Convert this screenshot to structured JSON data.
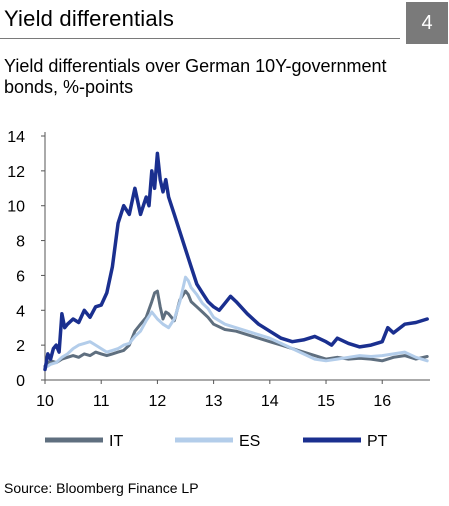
{
  "header": {
    "title": "Yield differentials",
    "badge": "4"
  },
  "subtitle": "Yield differentials over German 10Y-government bonds, %-points",
  "source": "Source: Bloomberg Finance LP",
  "colors": {
    "IT": "#5f6f7f",
    "ES": "#b3cdea",
    "PT": "#1a2f8f",
    "rule": "#7a7a7a"
  },
  "chart_data": {
    "type": "line",
    "title": "",
    "xlabel": "",
    "ylabel": "",
    "xlim": [
      10,
      16.85
    ],
    "ylim": [
      0,
      14
    ],
    "x_ticks": [
      "10",
      "11",
      "12",
      "13",
      "14",
      "15",
      "16"
    ],
    "y_ticks": [
      "0",
      "2",
      "4",
      "6",
      "8",
      "10",
      "12",
      "14"
    ],
    "grid": false,
    "legend": "bottom",
    "series": [
      {
        "name": "IT",
        "x": [
          10.0,
          10.1,
          10.2,
          10.3,
          10.4,
          10.5,
          10.6,
          10.7,
          10.8,
          10.9,
          11.0,
          11.1,
          11.2,
          11.3,
          11.4,
          11.5,
          11.55,
          11.6,
          11.7,
          11.8,
          11.9,
          11.95,
          12.0,
          12.05,
          12.1,
          12.15,
          12.2,
          12.3,
          12.4,
          12.5,
          12.55,
          12.6,
          12.7,
          12.8,
          12.9,
          13.0,
          13.2,
          13.4,
          13.6,
          13.8,
          14.0,
          14.2,
          14.4,
          14.6,
          14.8,
          15.0,
          15.2,
          15.4,
          15.6,
          15.8,
          16.0,
          16.2,
          16.4,
          16.6,
          16.8
        ],
        "y": [
          0.8,
          1.1,
          1.0,
          1.2,
          1.3,
          1.4,
          1.3,
          1.5,
          1.4,
          1.6,
          1.5,
          1.4,
          1.5,
          1.6,
          1.7,
          2.0,
          2.4,
          2.8,
          3.2,
          3.6,
          4.5,
          5.0,
          5.1,
          4.2,
          3.5,
          3.9,
          3.8,
          3.4,
          4.6,
          5.1,
          4.9,
          4.5,
          4.2,
          3.9,
          3.6,
          3.2,
          2.9,
          2.8,
          2.6,
          2.4,
          2.2,
          2.0,
          1.8,
          1.6,
          1.4,
          1.2,
          1.3,
          1.2,
          1.25,
          1.2,
          1.1,
          1.3,
          1.4,
          1.2,
          1.35
        ]
      },
      {
        "name": "ES",
        "x": [
          10.0,
          10.1,
          10.2,
          10.3,
          10.4,
          10.5,
          10.6,
          10.7,
          10.8,
          10.9,
          11.0,
          11.1,
          11.2,
          11.3,
          11.4,
          11.5,
          11.6,
          11.7,
          11.8,
          11.9,
          12.0,
          12.1,
          12.2,
          12.3,
          12.4,
          12.5,
          12.55,
          12.6,
          12.7,
          12.8,
          12.9,
          13.0,
          13.2,
          13.4,
          13.6,
          13.8,
          14.0,
          14.2,
          14.4,
          14.6,
          14.8,
          15.0,
          15.2,
          15.4,
          15.6,
          15.8,
          16.0,
          16.2,
          16.4,
          16.6,
          16.8
        ],
        "y": [
          0.7,
          0.9,
          1.0,
          1.3,
          1.5,
          1.8,
          2.0,
          2.1,
          2.2,
          2.0,
          1.8,
          1.6,
          1.7,
          1.8,
          2.0,
          2.1,
          2.5,
          2.8,
          3.4,
          3.9,
          3.5,
          3.2,
          3.0,
          3.5,
          4.5,
          5.9,
          5.7,
          5.3,
          4.9,
          4.4,
          4.1,
          3.6,
          3.2,
          3.0,
          2.8,
          2.6,
          2.4,
          2.1,
          1.8,
          1.5,
          1.2,
          1.1,
          1.2,
          1.3,
          1.4,
          1.35,
          1.4,
          1.5,
          1.6,
          1.3,
          1.1
        ]
      },
      {
        "name": "PT",
        "x": [
          10.0,
          10.05,
          10.1,
          10.15,
          10.2,
          10.25,
          10.3,
          10.35,
          10.4,
          10.5,
          10.6,
          10.7,
          10.8,
          10.9,
          11.0,
          11.1,
          11.2,
          11.3,
          11.4,
          11.5,
          11.6,
          11.7,
          11.8,
          11.85,
          11.9,
          11.95,
          12.0,
          12.05,
          12.1,
          12.15,
          12.2,
          12.3,
          12.4,
          12.5,
          12.55,
          12.6,
          12.7,
          12.8,
          12.9,
          13.0,
          13.1,
          13.2,
          13.3,
          13.4,
          13.6,
          13.8,
          14.0,
          14.2,
          14.4,
          14.6,
          14.8,
          15.0,
          15.1,
          15.2,
          15.4,
          15.6,
          15.8,
          16.0,
          16.1,
          16.2,
          16.4,
          16.6,
          16.8
        ],
        "y": [
          0.6,
          1.5,
          1.2,
          1.8,
          2.0,
          1.6,
          3.8,
          3.0,
          3.2,
          3.5,
          3.3,
          4.0,
          3.6,
          4.2,
          4.3,
          5.0,
          6.5,
          9.0,
          10.0,
          9.5,
          11.0,
          9.5,
          10.5,
          10.0,
          12.0,
          11.0,
          13.0,
          11.5,
          10.8,
          11.5,
          10.5,
          9.5,
          8.5,
          7.5,
          7.0,
          6.5,
          5.5,
          5.0,
          4.5,
          4.2,
          4.0,
          4.4,
          4.8,
          4.5,
          3.8,
          3.2,
          2.8,
          2.4,
          2.2,
          2.3,
          2.5,
          2.2,
          2.0,
          2.4,
          2.1,
          1.9,
          2.0,
          2.2,
          3.0,
          2.7,
          3.2,
          3.3,
          3.5
        ]
      }
    ]
  }
}
